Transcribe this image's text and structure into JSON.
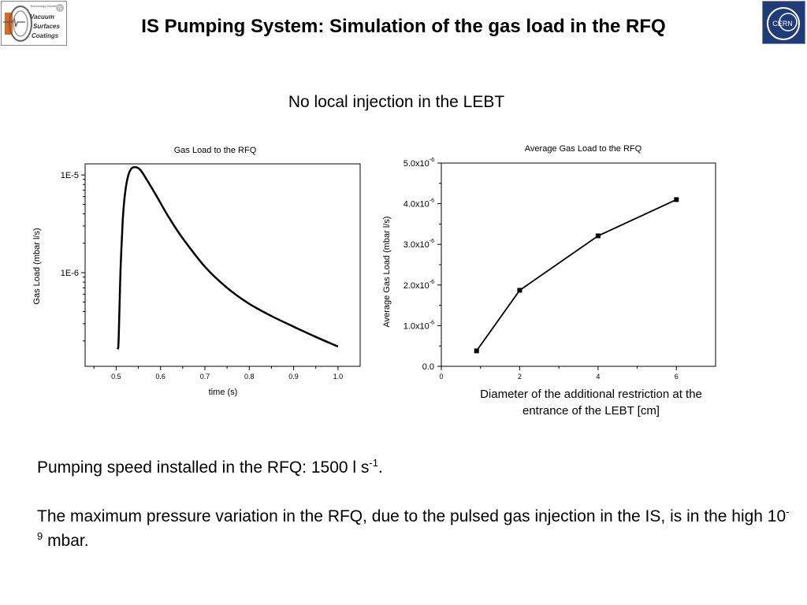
{
  "slide": {
    "title": "IS Pumping System: Simulation of the gas load in the RFQ",
    "subtitle": "No local injection in the LEBT",
    "logo_left": {
      "lines": [
        "Technology Department",
        "Vacuum",
        "Surfaces",
        "Coatings"
      ],
      "badge": "TE"
    },
    "logo_right": {
      "text": "CERN"
    },
    "caption": "Diameter of the additional restriction at the entrance of the LEBT [cm]",
    "body": {
      "line1_pre": "Pumping speed installed in the RFQ: 1500 l s",
      "line1_sup": "-1",
      "line1_post": ".",
      "line2_pre": "The maximum pressure variation in the RFQ, due to the pulsed gas injection in the IS, is in the high 10",
      "line2_sup": "-9",
      "line2_post": " mbar."
    }
  },
  "chart_data": [
    {
      "type": "line",
      "title": "Gas Load to the RFQ",
      "xlabel": "time (s)",
      "ylabel": "Gas Load (mbar l/s)",
      "xlim": [
        0.43,
        1.05
      ],
      "ylim": [
        1.1e-07,
        1.3e-05
      ],
      "yscale": "log",
      "xticks": [
        0.5,
        0.6,
        0.7,
        0.8,
        0.9,
        1.0
      ],
      "xtick_labels": [
        "0.5",
        "0.6",
        "0.7",
        "0.8",
        "0.9",
        "1.0"
      ],
      "yticks": [
        1e-06,
        1e-05
      ],
      "ytick_labels": [
        "1E-6",
        "1E-5"
      ],
      "series": [
        {
          "x": [
            0.503,
            0.505,
            0.507,
            0.51,
            0.515,
            0.52,
            0.527,
            0.535,
            0.545,
            0.555,
            0.57,
            0.59,
            0.62,
            0.65,
            0.7,
            0.75,
            0.8,
            0.85,
            0.9,
            0.95,
            1.0
          ],
          "y": [
            1.65e-07,
            1.8e-07,
            3.5e-07,
            1.1e-06,
            3.5e-06,
            6.5e-06,
            9.8e-06,
            1.17e-05,
            1.2e-05,
            1.12e-05,
            8.8e-06,
            6.2e-06,
            3.6e-06,
            2.25e-06,
            1.15e-06,
            7e-07,
            4.8e-07,
            3.6e-07,
            2.8e-07,
            2.2e-07,
            1.75e-07
          ]
        }
      ],
      "grid": false
    },
    {
      "type": "line",
      "title": "Average Gas Load to the RFQ",
      "xlabel": "",
      "ylabel": "Average Gas Load (mbar l/s)",
      "xlim": [
        0,
        7
      ],
      "ylim": [
        0,
        5e-06
      ],
      "xticks": [
        0,
        2,
        4,
        6
      ],
      "xtick_labels": [
        "0",
        "2",
        "4",
        "6"
      ],
      "yticks": [
        0,
        1e-06,
        2e-06,
        3e-06,
        4e-06,
        5e-06
      ],
      "ytick_labels": [
        {
          "base": "0.0",
          "exp": ""
        },
        {
          "base": "1.0x10",
          "exp": "-6"
        },
        {
          "base": "2.0x10",
          "exp": "-6"
        },
        {
          "base": "3.0x10",
          "exp": "-6"
        },
        {
          "base": "4.0x10",
          "exp": "-6"
        },
        {
          "base": "5.0x10",
          "exp": "-6"
        }
      ],
      "series": [
        {
          "x": [
            0.9,
            2.0,
            4.0,
            6.0
          ],
          "y": [
            3.8e-07,
            1.87e-06,
            3.21e-06,
            4.1e-06
          ],
          "marker": "square"
        }
      ],
      "grid": false
    }
  ]
}
